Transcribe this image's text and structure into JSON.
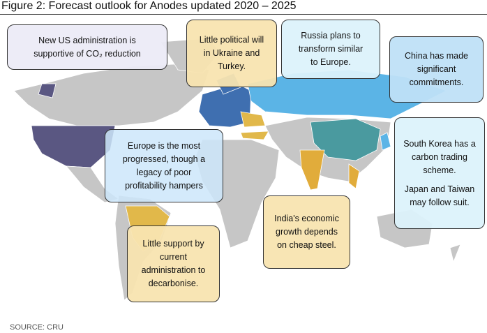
{
  "title": "Figure 2: Forecast outlook for Anodes updated 2020 – 2025",
  "callouts": [
    {
      "lines": [
        "New US administration is",
        "supportive of CO₂ reduction"
      ]
    },
    {
      "lines": [
        "Little political will",
        "in Ukraine and",
        "Turkey."
      ]
    },
    {
      "lines": [
        "Russia plans to",
        "transform similar",
        "to Europe."
      ]
    },
    {
      "lines": [
        "China has made",
        "significant",
        "commitments."
      ]
    },
    {
      "lines": [
        "South Korea has a",
        "carbon trading",
        "scheme.",
        "Japan and Taiwan",
        "may follow suit."
      ]
    },
    {
      "lines": [
        "Europe is the most",
        "progressed, though a",
        "legacy of poor",
        "profitability hampers"
      ]
    },
    {
      "lines": [
        "India's economic",
        "growth depends",
        "on cheap steel."
      ]
    },
    {
      "lines": [
        "Little support by",
        "current",
        "administration to",
        "decarbonise."
      ]
    }
  ],
  "source": "SOURCE: CRU"
}
